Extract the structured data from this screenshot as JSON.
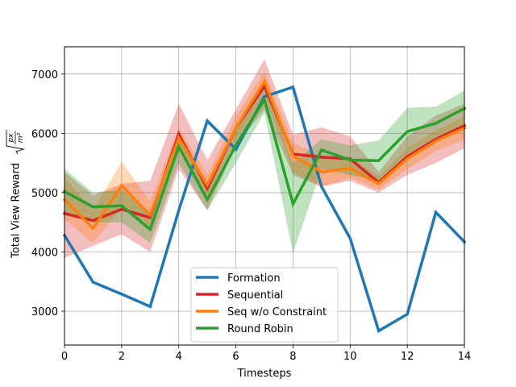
{
  "chart_data": {
    "type": "line",
    "xlabel": "Timesteps",
    "ylabel": "Total View Reward",
    "ylabel_formula": {
      "sqrt_num": "px",
      "sqrt_den": "m²"
    },
    "xlim": [
      0,
      14
    ],
    "ylim": [
      2430,
      7460
    ],
    "xticks": [
      0,
      2,
      4,
      6,
      8,
      10,
      12,
      14
    ],
    "yticks": [
      3000,
      4000,
      5000,
      6000,
      7000
    ],
    "grid": true,
    "legend_position": "lower-center",
    "x": [
      0,
      1,
      2,
      3,
      4,
      5,
      6,
      7,
      8,
      9,
      10,
      11,
      12,
      13,
      14
    ],
    "series": [
      {
        "name": "Formation",
        "color": "#1f77b4",
        "values": [
          4280,
          3490,
          3290,
          3080,
          4700,
          6210,
          5730,
          6620,
          6780,
          5100,
          4230,
          2670,
          2950,
          4670,
          4170
        ],
        "band": null
      },
      {
        "name": "Sequential",
        "color": "#d62728",
        "values": [
          4650,
          4530,
          4720,
          4580,
          5990,
          5070,
          6090,
          6800,
          5650,
          5600,
          5570,
          5170,
          5610,
          5900,
          6130
        ],
        "band": {
          "lower": [
            3900,
            4100,
            4300,
            4000,
            5400,
            4700,
            5800,
            6400,
            5300,
            5100,
            5200,
            5000,
            5300,
            5500,
            5750
          ],
          "upper": [
            5350,
            4950,
            5150,
            5200,
            6500,
            5550,
            6400,
            7250,
            5980,
            6100,
            5950,
            5350,
            5950,
            6300,
            6500
          ]
        }
      },
      {
        "name": "Seq w/o Constraint",
        "color": "#ff7f0e",
        "values": [
          4880,
          4400,
          5120,
          4620,
          5920,
          5130,
          6090,
          6880,
          5620,
          5350,
          5410,
          5150,
          5570,
          5870,
          6090
        ],
        "band": {
          "lower": [
            4550,
            4150,
            4750,
            4400,
            5700,
            4950,
            5900,
            6650,
            5350,
            5100,
            5250,
            5050,
            5400,
            5700,
            5900
          ],
          "upper": [
            5250,
            4700,
            5520,
            4850,
            6100,
            5300,
            6280,
            7050,
            5850,
            5600,
            5600,
            5280,
            5750,
            6050,
            6280
          ]
        }
      },
      {
        "name": "Round Robin",
        "color": "#2ca02c",
        "values": [
          5020,
          4760,
          4780,
          4380,
          5780,
          4880,
          5800,
          6570,
          4810,
          5720,
          5550,
          5540,
          6030,
          6170,
          6420
        ],
        "band": {
          "lower": [
            4650,
            4500,
            4500,
            4150,
            5500,
            4700,
            5500,
            6350,
            3980,
            5400,
            5300,
            5200,
            5650,
            5900,
            6150
          ],
          "upper": [
            5400,
            5000,
            5050,
            4650,
            6000,
            5050,
            6050,
            6850,
            5500,
            5900,
            5800,
            5880,
            6430,
            6450,
            6720
          ]
        }
      }
    ]
  }
}
